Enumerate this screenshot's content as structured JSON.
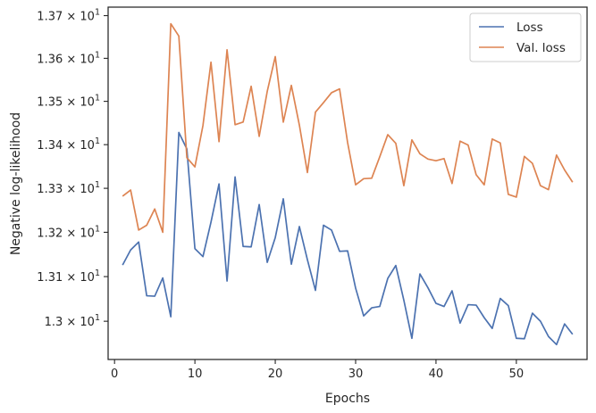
{
  "chart_data": {
    "type": "line",
    "xlabel": "Epochs",
    "ylabel": "Negative log-likelihood",
    "xlim": [
      -0.8,
      58.8
    ],
    "ylim": [
      12.915,
      13.72
    ],
    "x_ticks": [
      0,
      10,
      20,
      30,
      40,
      50
    ],
    "x_tick_labels": [
      "0",
      "10",
      "20",
      "30",
      "40",
      "50"
    ],
    "y_ticks": [
      13.0,
      13.1,
      13.2,
      13.3,
      13.4,
      13.5,
      13.6,
      13.7
    ],
    "y_tick_labels": [
      {
        "mant": "1.3",
        "exp": "1"
      },
      {
        "mant": "1.31",
        "exp": "1"
      },
      {
        "mant": "1.32",
        "exp": "1"
      },
      {
        "mant": "1.33",
        "exp": "1"
      },
      {
        "mant": "1.34",
        "exp": "1"
      },
      {
        "mant": "1.35",
        "exp": "1"
      },
      {
        "mant": "1.36",
        "exp": "1"
      },
      {
        "mant": "1.37",
        "exp": "1"
      }
    ],
    "log_scale_y": true,
    "grid": false,
    "legend_position": "top-right",
    "x": [
      1,
      2,
      3,
      4,
      5,
      6,
      7,
      8,
      9,
      10,
      11,
      12,
      13,
      14,
      15,
      16,
      17,
      18,
      19,
      20,
      21,
      22,
      23,
      24,
      25,
      26,
      27,
      28,
      29,
      30,
      31,
      32,
      33,
      34,
      35,
      36,
      37,
      38,
      39,
      40,
      41,
      42,
      43,
      44,
      45,
      46,
      47,
      48,
      49,
      50,
      51,
      52,
      53,
      54,
      55,
      56,
      57
    ],
    "series": [
      {
        "name": "Loss",
        "color": "#4c72b0",
        "values": [
          13.126,
          13.16,
          13.178,
          13.057,
          13.056,
          13.097,
          13.01,
          13.428,
          13.39,
          13.163,
          13.145,
          13.223,
          13.31,
          13.09,
          13.326,
          13.168,
          13.167,
          13.263,
          13.132,
          13.188,
          13.276,
          13.128,
          13.213,
          13.138,
          13.069,
          13.216,
          13.205,
          13.157,
          13.158,
          13.074,
          13.012,
          13.03,
          13.033,
          13.096,
          13.125,
          13.047,
          12.962,
          13.106,
          13.075,
          13.04,
          13.033,
          13.068,
          12.996,
          13.037,
          13.036,
          13.008,
          12.984,
          13.051,
          13.035,
          12.962,
          12.961,
          13.018,
          13.0,
          12.966,
          12.948,
          12.994,
          12.971
        ]
      },
      {
        "name": "Val. loss",
        "color": "#dd8452",
        "values": [
          13.282,
          13.296,
          13.205,
          13.216,
          13.253,
          13.2,
          13.681,
          13.652,
          13.37,
          13.349,
          13.444,
          13.591,
          13.407,
          13.62,
          13.446,
          13.452,
          13.535,
          13.419,
          13.523,
          13.604,
          13.452,
          13.537,
          13.445,
          13.336,
          13.475,
          13.497,
          13.52,
          13.529,
          13.405,
          13.308,
          13.322,
          13.323,
          13.372,
          13.423,
          13.403,
          13.306,
          13.411,
          13.379,
          13.367,
          13.363,
          13.368,
          13.311,
          13.408,
          13.399,
          13.331,
          13.308,
          13.413,
          13.404,
          13.286,
          13.28,
          13.373,
          13.357,
          13.306,
          13.297,
          13.376,
          13.342,
          13.314
        ]
      }
    ]
  }
}
